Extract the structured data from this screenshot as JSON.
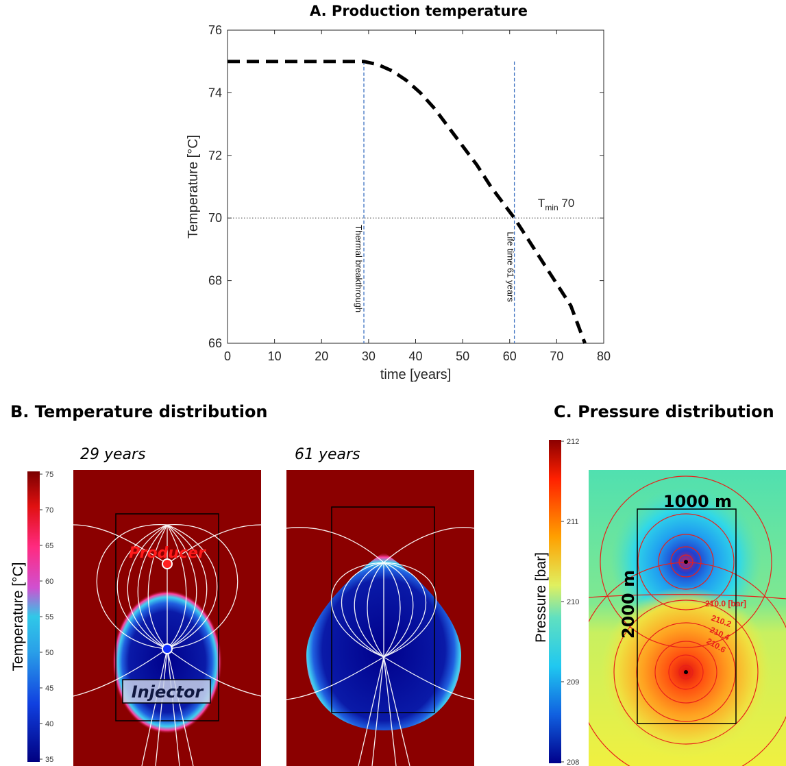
{
  "colors": {
    "hot": "#8b0000",
    "cold": "#00008b",
    "curve": "#000000",
    "marker_line": "#3a6fc0",
    "isobar": "#e8201a",
    "stream": "#ffffff"
  },
  "panel_a": {
    "title": "A. Production temperature",
    "vline_labels": {
      "breakthrough": "Thermal breakthrough",
      "lifetime": "Life time 61 years"
    },
    "tmin_label": "T",
    "tmin_sub": "min",
    "tmin_value": "70"
  },
  "panel_b": {
    "title": "B. Temperature distribution",
    "time_labels": [
      "29 years",
      "61 years"
    ],
    "producer_label": "Producer",
    "injector_label": "Injector",
    "colorbar_label": "Temperature [°C]",
    "colorbar_ticks": [
      "75",
      "70",
      "65",
      "60",
      "55",
      "50",
      "45",
      "40",
      "35"
    ]
  },
  "panel_c": {
    "title": "C. Pressure distribution",
    "width_label": "1000 m",
    "length_label": "2000 m",
    "colorbar_label": "Pressure [bar]",
    "colorbar_ticks": [
      "212",
      "211",
      "210",
      "209",
      "208"
    ],
    "contour_labels": [
      "210.0 [bar]",
      "210.2",
      "210.4",
      "210.6"
    ]
  },
  "chart_data": [
    {
      "type": "line",
      "title": "A. Production temperature",
      "xlabel": "time [years]",
      "ylabel": "Temperature [°C]",
      "xlim": [
        0,
        80
      ],
      "ylim": [
        66,
        76
      ],
      "xticks": [
        "0",
        "10",
        "20",
        "30",
        "40",
        "50",
        "60",
        "70",
        "80"
      ],
      "yticks": [
        "66",
        "68",
        "70",
        "72",
        "74",
        "76"
      ],
      "grid": false,
      "series": [
        {
          "x": [
            0,
            5,
            10,
            15,
            20,
            25,
            29,
            32,
            35,
            38,
            41,
            44,
            47,
            50,
            53,
            56,
            59,
            61,
            64,
            67,
            70,
            73,
            76
          ],
          "y": [
            75,
            75,
            75,
            75,
            75,
            75,
            75,
            74.9,
            74.7,
            74.4,
            74.0,
            73.5,
            72.9,
            72.3,
            71.7,
            71.0,
            70.4,
            70.0,
            69.3,
            68.6,
            67.9,
            67.2,
            66.0
          ]
        }
      ],
      "hline": {
        "y": 70
      },
      "vlines": [
        {
          "x": 29
        },
        {
          "x": 61
        }
      ]
    }
  ]
}
